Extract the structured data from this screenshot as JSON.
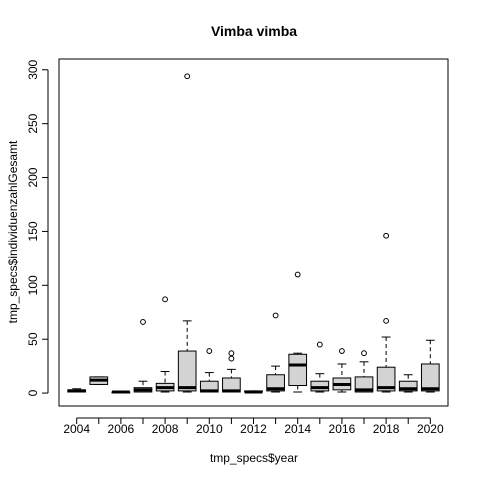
{
  "chart_data": {
    "type": "box",
    "title": "Vimba vimba",
    "xlabel": "tmp_specs$year",
    "ylabel": "tmp_specs$individuenzahlGesamt",
    "ylim": [
      -12,
      310
    ],
    "y_ticks": [
      0,
      50,
      100,
      150,
      200,
      250,
      300
    ],
    "x_tick_labels": [
      "2004",
      "2006",
      "2008",
      "2010",
      "2012",
      "2014",
      "2016",
      "2018",
      "2020"
    ],
    "box_fill": "#d3d3d3",
    "grid": false,
    "boxes": [
      {
        "year": 2004,
        "whisker_low": 1,
        "q1": 1,
        "median": 2,
        "q3": 3,
        "whisker_high": 4,
        "outliers": []
      },
      {
        "year": 2005,
        "whisker_low": 8,
        "q1": 8,
        "median": 12,
        "q3": 15,
        "whisker_high": 15,
        "outliers": []
      },
      {
        "year": 2006,
        "whisker_low": 0.5,
        "q1": 0.5,
        "median": 1,
        "q3": 1,
        "whisker_high": 1,
        "outliers": []
      },
      {
        "year": 2007,
        "whisker_low": 1,
        "q1": 1,
        "median": 3,
        "q3": 5,
        "whisker_high": 11,
        "outliers": [
          66
        ]
      },
      {
        "year": 2008,
        "whisker_low": 1,
        "q1": 2,
        "median": 5,
        "q3": 9,
        "whisker_high": 20,
        "outliers": [
          87
        ]
      },
      {
        "year": 2009,
        "whisker_low": 1,
        "q1": 2,
        "median": 5,
        "q3": 39,
        "whisker_high": 67,
        "outliers": [
          294
        ]
      },
      {
        "year": 2010,
        "whisker_low": 1,
        "q1": 1,
        "median": 2,
        "q3": 11,
        "whisker_high": 19,
        "outliers": [
          39
        ]
      },
      {
        "year": 2011,
        "whisker_low": 1,
        "q1": 1,
        "median": 2,
        "q3": 14,
        "whisker_high": 22,
        "outliers": [
          32,
          37
        ]
      },
      {
        "year": 2012,
        "whisker_low": 1,
        "q1": 1,
        "median": 1,
        "q3": 2,
        "whisker_high": 2,
        "outliers": []
      },
      {
        "year": 2013,
        "whisker_low": 1,
        "q1": 2,
        "median": 4,
        "q3": 17,
        "whisker_high": 25,
        "outliers": [
          72
        ]
      },
      {
        "year": 2014,
        "whisker_low": 1,
        "q1": 7,
        "median": 26,
        "q3": 36,
        "whisker_high": 37,
        "outliers": [
          110
        ]
      },
      {
        "year": 2015,
        "whisker_low": 1,
        "q1": 2,
        "median": 5,
        "q3": 11,
        "whisker_high": 18,
        "outliers": [
          45
        ]
      },
      {
        "year": 2016,
        "whisker_low": 1,
        "q1": 3,
        "median": 8,
        "q3": 14,
        "whisker_high": 27,
        "outliers": [
          39
        ]
      },
      {
        "year": 2017,
        "whisker_low": 1,
        "q1": 1,
        "median": 3,
        "q3": 15,
        "whisker_high": 29,
        "outliers": [
          37
        ]
      },
      {
        "year": 2018,
        "whisker_low": 1,
        "q1": 2,
        "median": 5,
        "q3": 24,
        "whisker_high": 52,
        "outliers": [
          67,
          146
        ]
      },
      {
        "year": 2019,
        "whisker_low": 1,
        "q1": 2,
        "median": 4,
        "q3": 11,
        "whisker_high": 17,
        "outliers": []
      },
      {
        "year": 2020,
        "whisker_low": 1,
        "q1": 2,
        "median": 4,
        "q3": 27,
        "whisker_high": 49,
        "outliers": []
      }
    ]
  }
}
